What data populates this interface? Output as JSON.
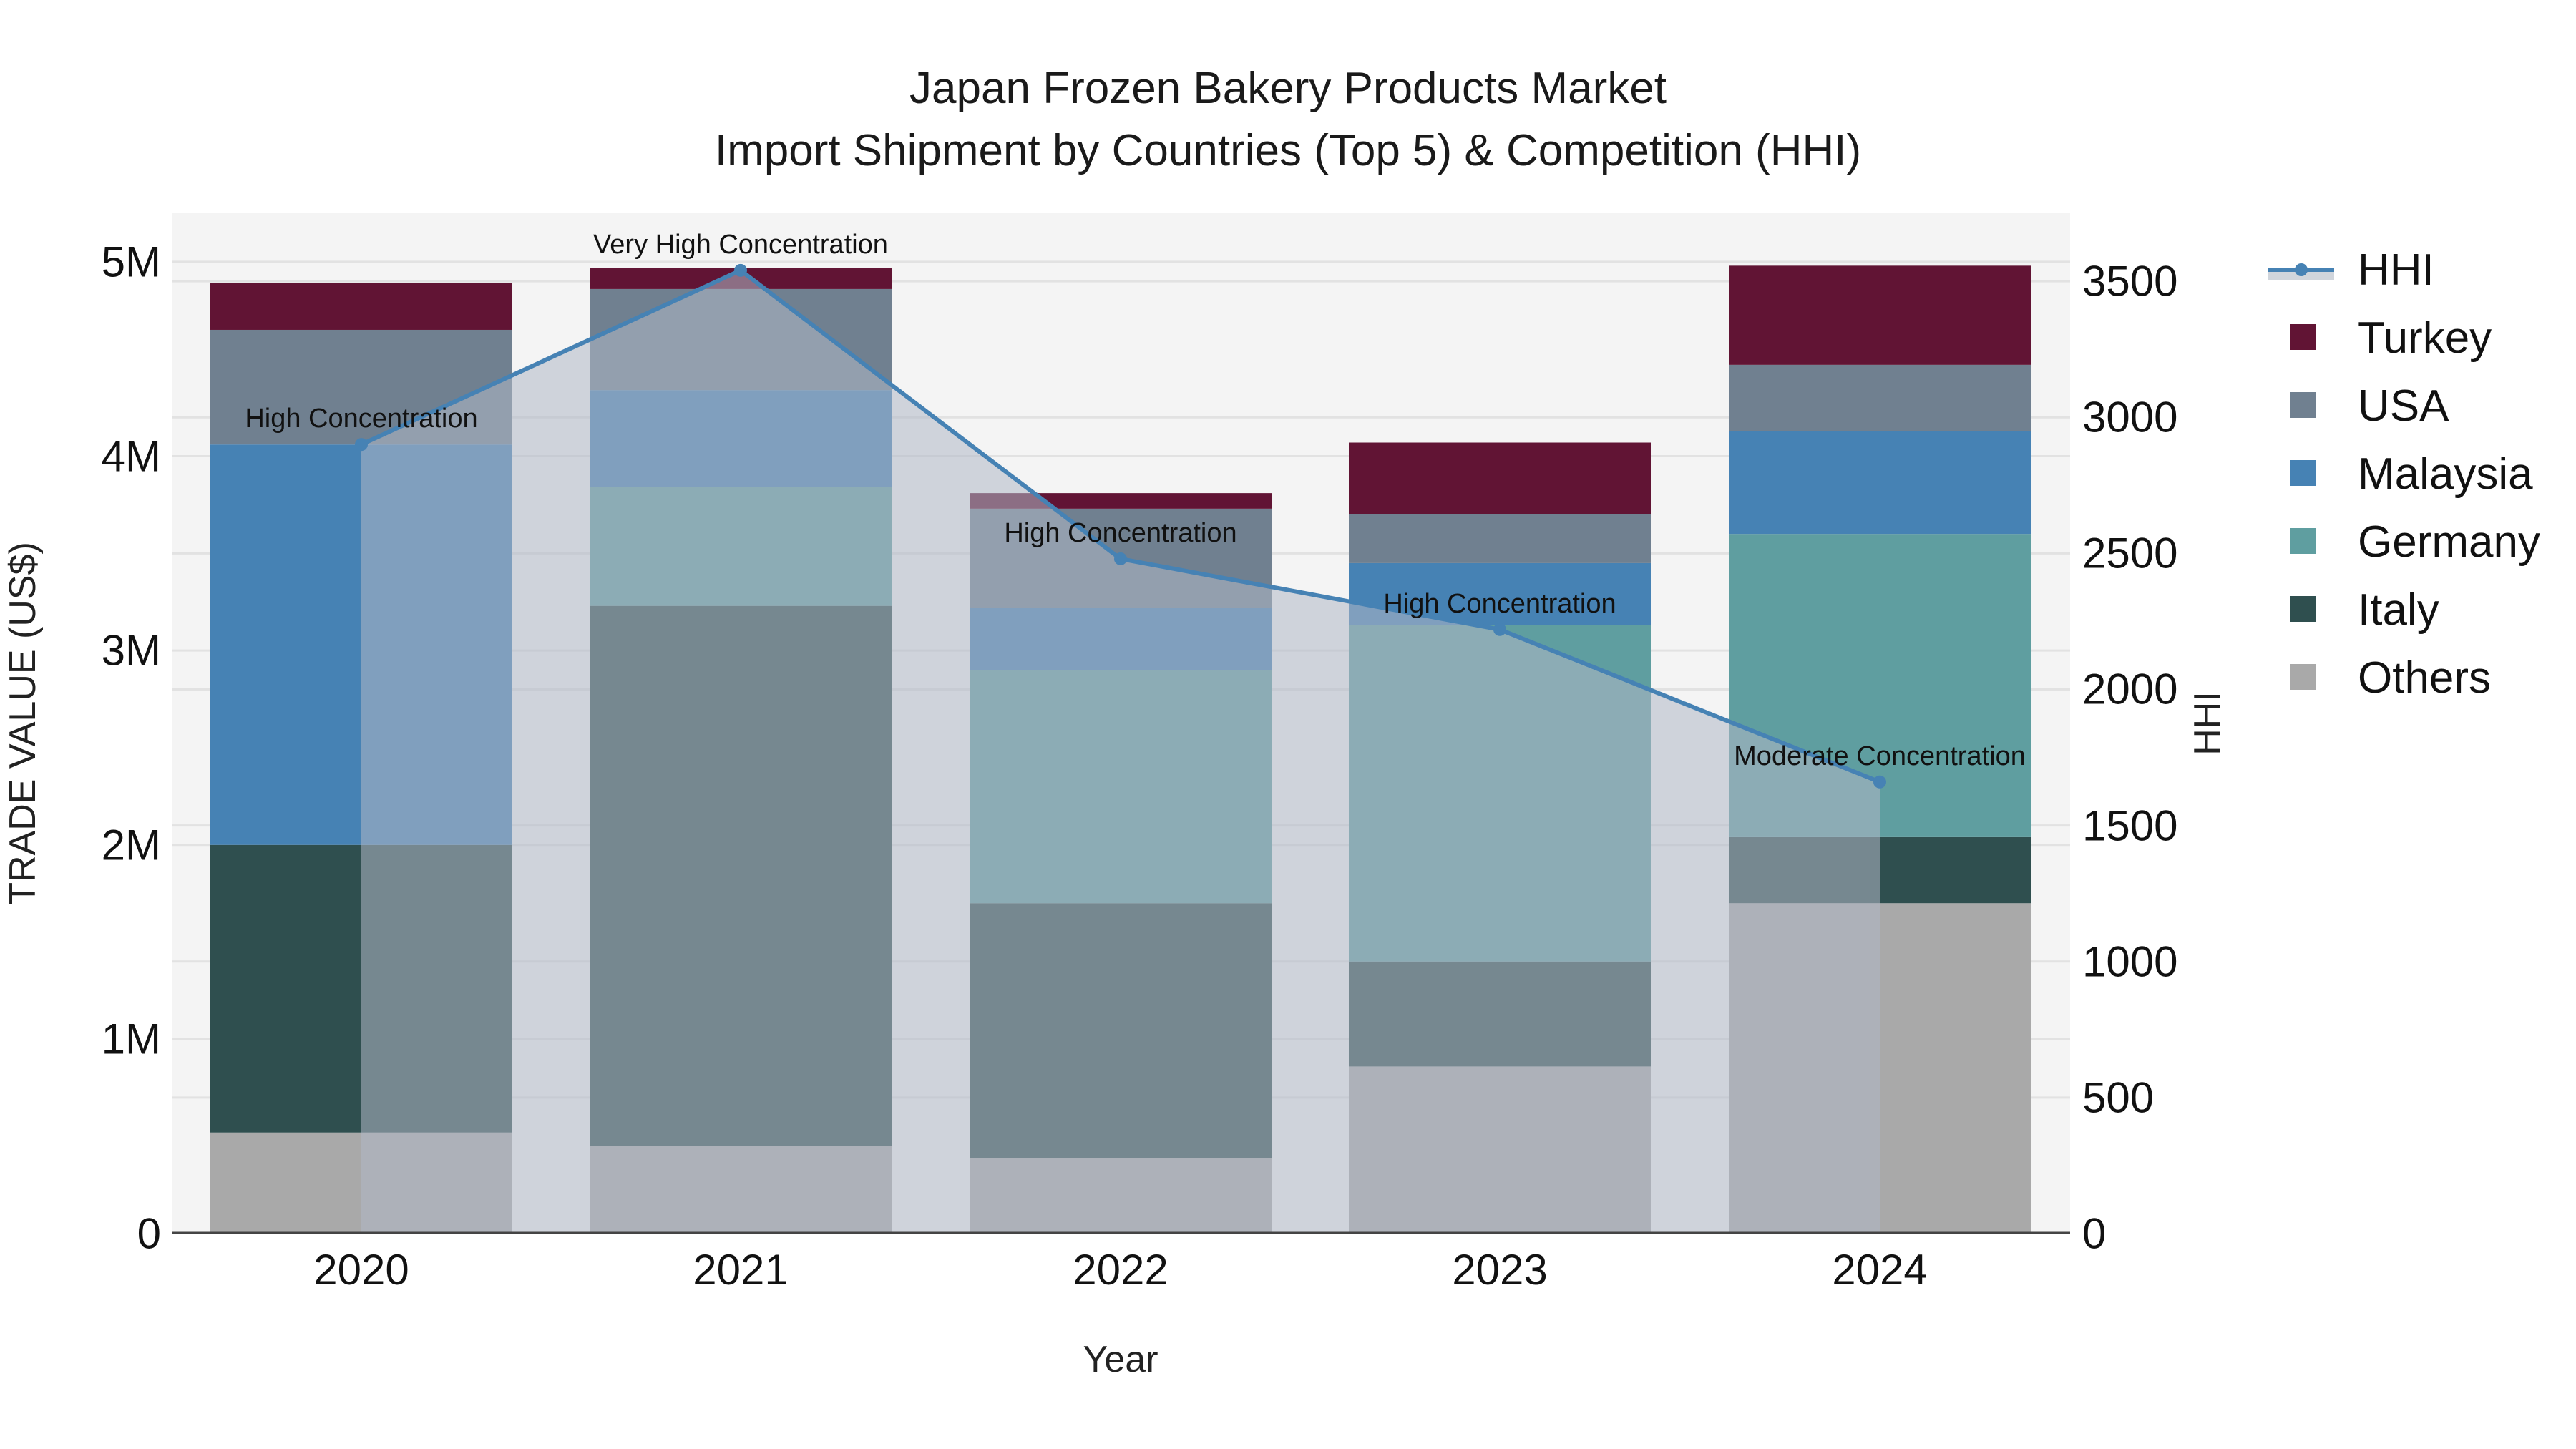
{
  "title": {
    "line1": "Japan Frozen Bakery Products Market",
    "line2": "Import Shipment by Countries (Top 5) & Competition (HHI)"
  },
  "axes": {
    "x_title": "Year",
    "y_left_title": "TRADE VALUE (US$)",
    "y_right_title": "HHI",
    "y_left_ticks": [
      "0",
      "1M",
      "2M",
      "3M",
      "4M",
      "5M"
    ],
    "y_right_ticks": [
      "0",
      "500",
      "1000",
      "1500",
      "2000",
      "2500",
      "3000",
      "3500"
    ],
    "x_ticks": [
      "2020",
      "2021",
      "2022",
      "2023",
      "2024"
    ]
  },
  "legend": [
    {
      "name": "HHI",
      "type": "line",
      "color": "#4682b4"
    },
    {
      "name": "Turkey",
      "type": "bar",
      "color": "#611434"
    },
    {
      "name": "USA",
      "type": "bar",
      "color": "#708090"
    },
    {
      "name": "Malaysia",
      "type": "bar",
      "color": "#4682b4"
    },
    {
      "name": "Germany",
      "type": "bar",
      "color": "#5f9ea0"
    },
    {
      "name": "Italy",
      "type": "bar",
      "color": "#2f4f4f"
    },
    {
      "name": "Others",
      "type": "bar",
      "color": "#a9a9a9"
    }
  ],
  "annotations": [
    {
      "year": "2020",
      "text": "High Concentration"
    },
    {
      "year": "2021",
      "text": "Very High Concentration"
    },
    {
      "year": "2022",
      "text": "High Concentration"
    },
    {
      "year": "2023",
      "text": "High Concentration"
    },
    {
      "year": "2024",
      "text": "Moderate Concentration"
    }
  ],
  "chart_data": {
    "type": "bar",
    "stacked": true,
    "title": "Japan Frozen Bakery Products Market — Import Shipment by Countries (Top 5) & Competition (HHI)",
    "xlabel": "Year",
    "ylabel": "TRADE VALUE (US$)",
    "y2label": "HHI",
    "categories": [
      "2020",
      "2021",
      "2022",
      "2023",
      "2024"
    ],
    "ylim": [
      0,
      5250000
    ],
    "y2lim": [
      0,
      3750
    ],
    "grid": true,
    "legend_position": "right",
    "series": [
      {
        "name": "Others",
        "color": "#a9a9a9",
        "values": [
          520000,
          450000,
          390000,
          860000,
          1700000
        ]
      },
      {
        "name": "Italy",
        "color": "#2f4f4f",
        "values": [
          1480000,
          2780000,
          1310000,
          540000,
          340000
        ]
      },
      {
        "name": "Germany",
        "color": "#5f9ea0",
        "values": [
          0,
          610000,
          1200000,
          1730000,
          1560000
        ]
      },
      {
        "name": "Malaysia",
        "color": "#4682b4",
        "values": [
          2060000,
          500000,
          320000,
          320000,
          530000
        ]
      },
      {
        "name": "USA",
        "color": "#708090",
        "values": [
          590000,
          520000,
          510000,
          250000,
          340000
        ]
      },
      {
        "name": "Turkey",
        "color": "#611434",
        "values": [
          240000,
          110000,
          80000,
          370000,
          510000
        ]
      }
    ],
    "line_series": {
      "name": "HHI",
      "axis": "y2",
      "color": "#4682b4",
      "fill": "tozeroy",
      "values": [
        2900,
        3540,
        2480,
        2220,
        1660
      ],
      "labels": [
        "High Concentration",
        "Very High Concentration",
        "High Concentration",
        "High Concentration",
        "Moderate Concentration"
      ]
    }
  }
}
